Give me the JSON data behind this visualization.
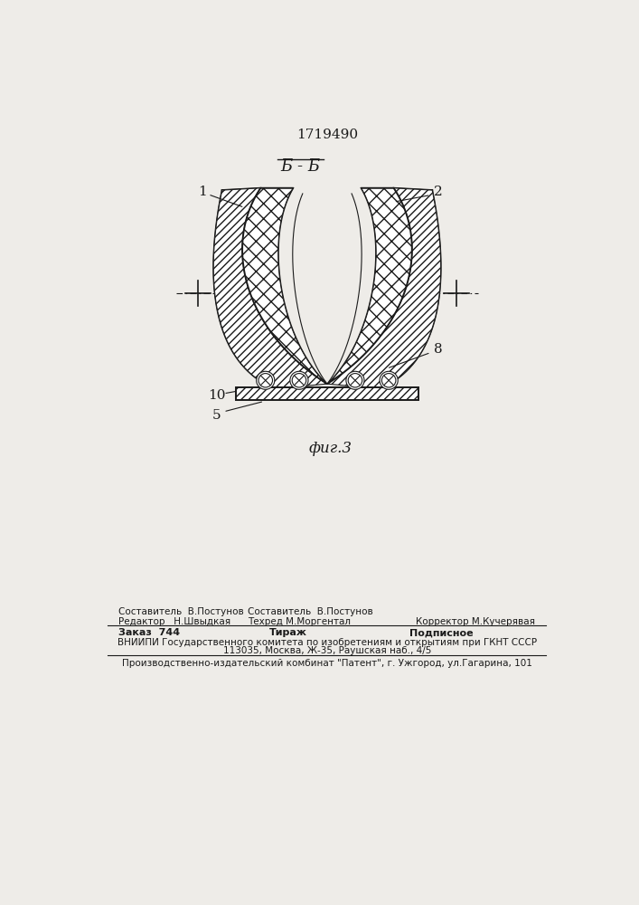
{
  "patent_number": "1719490",
  "section_label": "Б - Б",
  "fig_label": "фиг.3",
  "label_1": "1",
  "label_2": "2",
  "label_8": "8",
  "label_10": "10",
  "label_5": "5",
  "bg_color": "#eeece8",
  "line_color": "#1a1a1a",
  "footer_editor": "Редактор   Н.Швыдкая",
  "footer_sostavitel": "Составитель  В.Постунов",
  "footer_tehred": "Техред М.Моргентал",
  "footer_korrektor": "Корректор М.Кучерявая",
  "footer_zakaz": "Заказ  744",
  "footer_tirazh": "Тираж",
  "footer_podpisnoe": "Подписное",
  "footer_vniipи": "ВНИИПИ Государственного комитета по изобретениям и открытиям при ГКНТ СССР",
  "footer_address": "113035, Москва, Ж-35, Раушская наб., 4/5",
  "footer_patent": "Производственно-издательский комбинат \"Патент\", г. Ужгород, ул.Гагарина, 101"
}
